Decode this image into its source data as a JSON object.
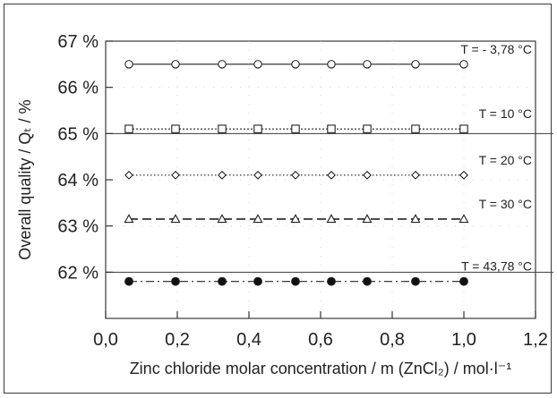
{
  "chart_data": {
    "type": "line",
    "xlabel": "Zinc chloride molar concentration / m (ZnCl₂) / mol·l⁻¹",
    "ylabel": "Overall quality / Qₜ / %",
    "xlim": [
      0.0,
      1.2
    ],
    "ylim": [
      61.0,
      67.0
    ],
    "x_ticks": [
      "0,0",
      "0,2",
      "0,4",
      "0,6",
      "0,8",
      "1,0",
      "1,2"
    ],
    "y_ticks": [
      "62 %",
      "63 %",
      "64 %",
      "65 %",
      "66 %",
      "67 %"
    ],
    "x": [
      0.065,
      0.195,
      0.325,
      0.425,
      0.53,
      0.63,
      0.73,
      0.865,
      1.0
    ],
    "reference_lines_y": [
      65.0,
      62.0
    ],
    "grid": "dotted",
    "series": [
      {
        "name": "T = - 3,78 °C",
        "marker": "circle-open",
        "line": "solid",
        "values": [
          66.5,
          66.5,
          66.5,
          66.5,
          66.5,
          66.5,
          66.5,
          66.5,
          66.5
        ]
      },
      {
        "name": "T = 10 °C",
        "marker": "square-open",
        "line": "fine-dotted",
        "values": [
          65.1,
          65.1,
          65.1,
          65.1,
          65.1,
          65.1,
          65.1,
          65.1,
          65.1
        ]
      },
      {
        "name": "T = 20 °C",
        "marker": "diamond-open",
        "line": "dotted",
        "values": [
          64.1,
          64.1,
          64.1,
          64.1,
          64.1,
          64.1,
          64.1,
          64.1,
          64.1
        ]
      },
      {
        "name": "T = 30 °C",
        "marker": "triangle-open",
        "line": "dashed",
        "values": [
          63.15,
          63.15,
          63.15,
          63.15,
          63.15,
          63.15,
          63.15,
          63.15,
          63.15
        ]
      },
      {
        "name": "T = 43,78 °C",
        "marker": "circle-filled",
        "line": "dash-dot",
        "values": [
          61.8,
          61.8,
          61.8,
          61.8,
          61.8,
          61.8,
          61.8,
          61.8,
          61.8
        ]
      }
    ]
  }
}
